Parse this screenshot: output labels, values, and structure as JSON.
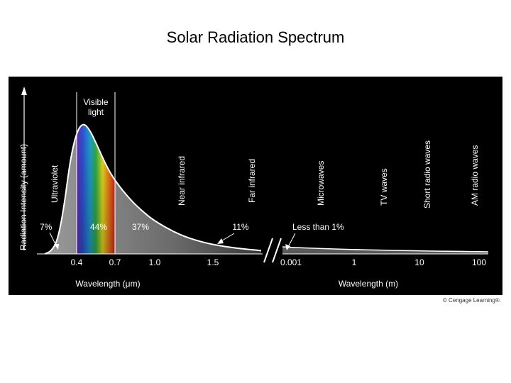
{
  "page": {
    "title": "Solar Radiation Spectrum",
    "credit": "© Cengage Learning®."
  },
  "chart_data": {
    "type": "area",
    "ylabel": "Radiation Intensity (amount)",
    "visible_label_line1": "Visible",
    "visible_label_line2": "light",
    "regions": [
      {
        "label": "Ultraviolet",
        "percent": "7%"
      },
      {
        "label": "Visible",
        "percent": "44%"
      },
      {
        "label": "Near infrared",
        "percent": "37%"
      },
      {
        "label": "Far infrared",
        "percent": "11%"
      },
      {
        "label": "Microwaves, TV waves, Short radio waves, AM radio waves",
        "percent": "Less than 1%"
      }
    ],
    "band_labels": [
      "Ultraviolet",
      "Near infrared",
      "Far infrared",
      "Microwaves",
      "TV waves",
      "Short radio waves",
      "AM radio waves"
    ],
    "left_axis": {
      "label": "Wavelength (μm)",
      "ticks": [
        "0.4",
        "0.7",
        "1.0",
        "1.5"
      ],
      "tick_values": [
        0.4,
        0.7,
        1.0,
        1.5
      ]
    },
    "right_axis": {
      "label": "Wavelength (m)",
      "ticks": [
        "0.001",
        "1",
        "10",
        "100"
      ]
    },
    "curve_x_um": [
      0.15,
      0.2,
      0.25,
      0.3,
      0.35,
      0.4,
      0.45,
      0.5,
      0.55,
      0.6,
      0.65,
      0.7,
      0.8,
      0.9,
      1.0,
      1.2,
      1.4,
      1.6,
      1.8,
      2.0
    ],
    "curve_y_rel": [
      0.0,
      0.02,
      0.1,
      0.35,
      0.72,
      0.93,
      1.0,
      0.95,
      0.85,
      0.74,
      0.64,
      0.56,
      0.43,
      0.33,
      0.25,
      0.15,
      0.09,
      0.055,
      0.035,
      0.025
    ],
    "colors": {
      "background": "#000000",
      "curve_fill": "#8c8c8c",
      "curve_fill_dark": "#2a2a2a",
      "text": "#ffffff"
    }
  }
}
